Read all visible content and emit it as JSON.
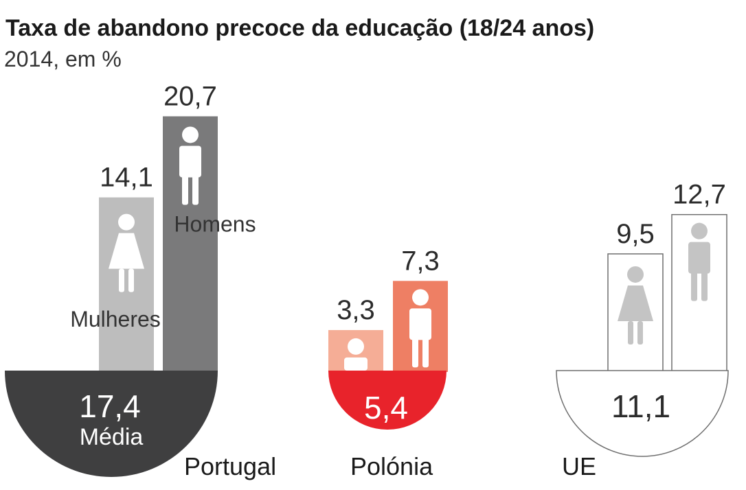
{
  "chart_data": {
    "type": "bar",
    "title": "Taxa de abandono precoce da educação (18/24 anos)",
    "subtitle": "2014, em %",
    "average_label": "Média",
    "groups": [
      {
        "name": "Portugal",
        "average": "17,4",
        "average_value": 17.4,
        "show_gender_labels": true,
        "bars": [
          {
            "gender": "female",
            "label": "Mulheres",
            "value": 14.1,
            "display": "14,1"
          },
          {
            "gender": "male",
            "label": "Homens",
            "value": 20.7,
            "display": "20,7"
          }
        ]
      },
      {
        "name": "Polónia",
        "average": "5,4",
        "average_value": 5.4,
        "show_gender_labels": false,
        "bars": [
          {
            "gender": "female",
            "label": "",
            "value": 3.3,
            "display": "3,3"
          },
          {
            "gender": "male",
            "label": "",
            "value": 7.3,
            "display": "7,3"
          }
        ]
      },
      {
        "name": "UE",
        "average": "11,1",
        "average_value": 11.1,
        "show_gender_labels": false,
        "bars": [
          {
            "gender": "female",
            "label": "",
            "value": 9.5,
            "display": "9,5"
          },
          {
            "gender": "male",
            "label": "",
            "value": 12.7,
            "display": "12,7"
          }
        ]
      }
    ],
    "colors": {
      "portugal_female": "#bdbdbd",
      "portugal_male": "#7a7a7b",
      "portugal_average": "#3f3f40",
      "polonia_female": "#f5ad96",
      "polonia_male": "#ee7f64",
      "polonia_average": "#e8232b",
      "ue_outline": "#6e6e6e",
      "ue_icon": "#c4c4c4"
    }
  }
}
